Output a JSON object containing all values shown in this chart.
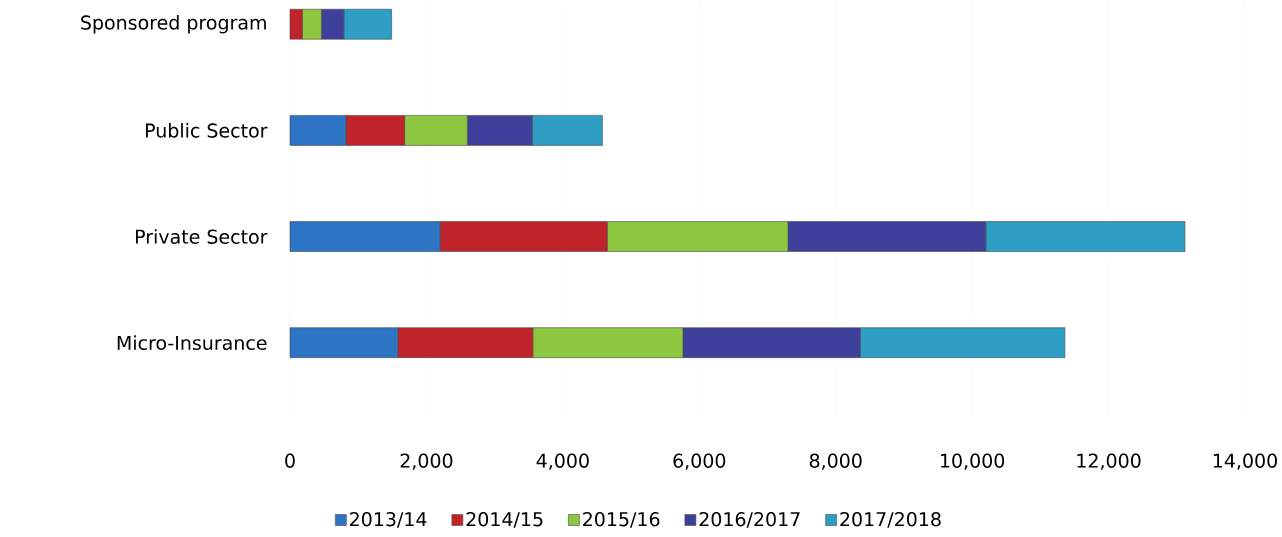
{
  "chart_data": {
    "type": "bar",
    "orientation": "horizontal",
    "stacked": true,
    "categories": [
      "Sponsored program",
      "Public Sector",
      "Private Sector",
      "Micro-Insurance"
    ],
    "series": [
      {
        "name": "2013/14",
        "color": "#2e74c4",
        "values": [
          0,
          820,
          2200,
          1580
        ]
      },
      {
        "name": "2014/15",
        "color": "#c0232a",
        "values": [
          180,
          860,
          2450,
          1980
        ]
      },
      {
        "name": "2015/16",
        "color": "#8dc63f",
        "values": [
          280,
          920,
          2650,
          2200
        ]
      },
      {
        "name": "2016/2017",
        "color": "#3f3f9c",
        "values": [
          330,
          950,
          2900,
          2600
        ]
      },
      {
        "name": "2017/2018",
        "color": "#2e9ec4",
        "values": [
          700,
          1030,
          2920,
          3000
        ]
      }
    ],
    "xlim": [
      0,
      14000
    ],
    "xticks": [
      {
        "value": 0,
        "label": "0"
      },
      {
        "value": 2000,
        "label": "2,000"
      },
      {
        "value": 4000,
        "label": "4,000"
      },
      {
        "value": 6000,
        "label": "6,000"
      },
      {
        "value": 8000,
        "label": "8,000"
      },
      {
        "value": 10000,
        "label": "10,000"
      },
      {
        "value": 12000,
        "label": "12,000"
      },
      {
        "value": 14000,
        "label": "14,000"
      }
    ],
    "grid": "x",
    "legend": "bottom"
  }
}
